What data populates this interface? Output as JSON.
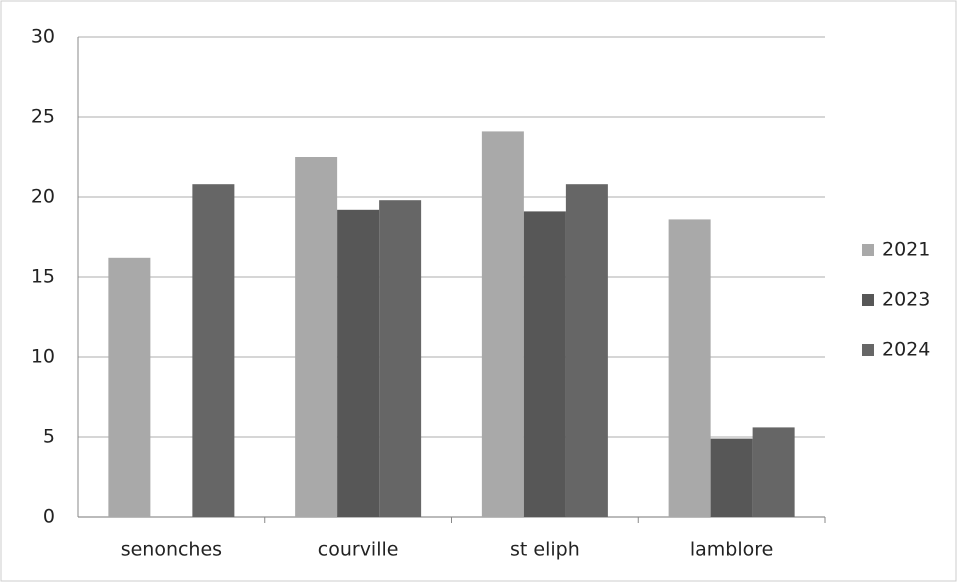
{
  "chart_data": {
    "type": "bar",
    "categories": [
      "senonches",
      "courville",
      "st eliph",
      "lamblore"
    ],
    "series": [
      {
        "name": "2021",
        "color": "#a9a9a9",
        "values": [
          16.2,
          22.5,
          24.1,
          18.6
        ]
      },
      {
        "name": "2023",
        "color": "#575757",
        "values": [
          null,
          19.2,
          19.1,
          4.9
        ]
      },
      {
        "name": "2024",
        "color": "#666666",
        "values": [
          20.8,
          19.8,
          20.8,
          5.6
        ]
      }
    ],
    "ylim": [
      0,
      30
    ],
    "yticks": [
      0,
      5,
      10,
      15,
      20,
      25,
      30
    ],
    "grid": true,
    "legend": "right"
  }
}
